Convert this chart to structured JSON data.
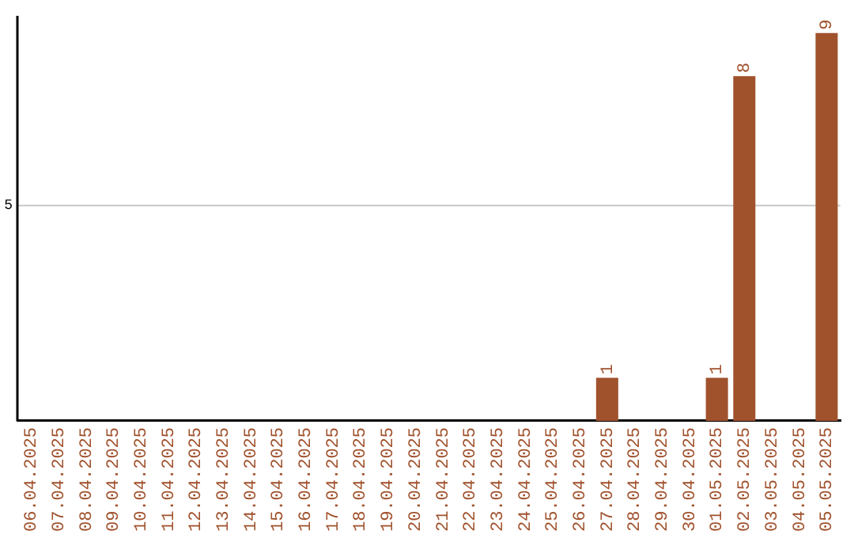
{
  "chart_data": {
    "type": "bar",
    "categories": [
      "06.04.2025",
      "07.04.2025",
      "08.04.2025",
      "09.04.2025",
      "10.04.2025",
      "11.04.2025",
      "12.04.2025",
      "13.04.2025",
      "14.04.2025",
      "15.04.2025",
      "16.04.2025",
      "17.04.2025",
      "18.04.2025",
      "19.04.2025",
      "20.04.2025",
      "21.04.2025",
      "22.04.2025",
      "23.04.2025",
      "24.04.2025",
      "25.04.2025",
      "26.04.2025",
      "27.04.2025",
      "28.04.2025",
      "29.04.2025",
      "30.04.2025",
      "01.05.2025",
      "02.05.2025",
      "03.05.2025",
      "04.05.2025",
      "05.05.2025"
    ],
    "values": [
      null,
      null,
      null,
      null,
      null,
      null,
      null,
      null,
      null,
      null,
      null,
      null,
      null,
      null,
      null,
      null,
      null,
      null,
      null,
      null,
      null,
      1,
      null,
      null,
      null,
      1,
      8,
      null,
      null,
      9
    ],
    "value_labels": [
      null,
      null,
      null,
      null,
      null,
      null,
      null,
      null,
      null,
      null,
      null,
      null,
      null,
      null,
      null,
      null,
      null,
      null,
      null,
      null,
      null,
      "1",
      null,
      null,
      null,
      "1",
      "8",
      null,
      null,
      "9"
    ],
    "ylim": [
      0,
      9.4
    ],
    "color": "#a0522d",
    "ref_lines": [
      {
        "axis": "y",
        "value": 5,
        "label": "5",
        "color": "#c8c8c8"
      }
    ],
    "legend": false
  }
}
